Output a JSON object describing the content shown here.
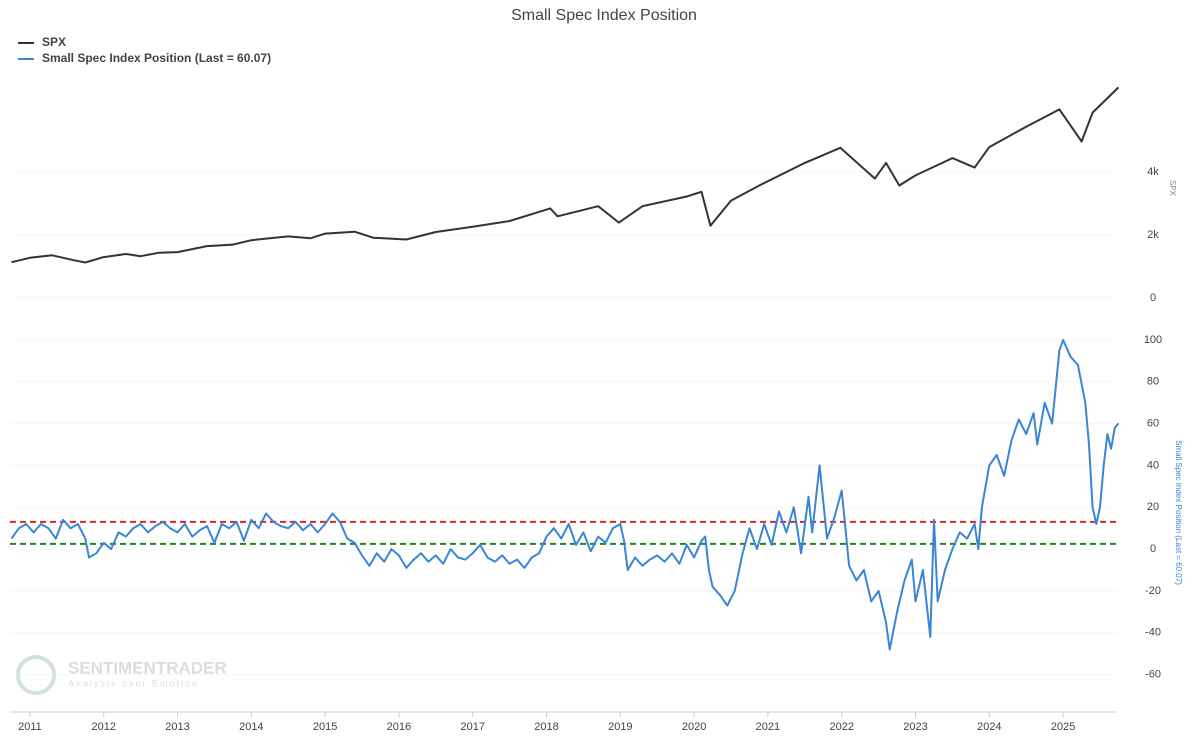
{
  "chart_data": [
    {
      "type": "line",
      "title": "Small Spec Index Position",
      "ylabel": "SPX",
      "x": [
        2010.75,
        2011.0,
        2011.3,
        2011.6,
        2011.75,
        2012.0,
        2012.3,
        2012.5,
        2012.75,
        2013.0,
        2013.4,
        2013.75,
        2014.0,
        2014.5,
        2014.8,
        2015.0,
        2015.4,
        2015.65,
        2016.1,
        2016.5,
        2017.0,
        2017.5,
        2018.05,
        2018.15,
        2018.7,
        2018.98,
        2019.3,
        2019.9,
        2020.1,
        2020.22,
        2020.5,
        2020.9,
        2021.5,
        2021.98,
        2022.45,
        2022.6,
        2022.78,
        2023.0,
        2023.5,
        2023.8,
        2024.0,
        2024.5,
        2024.95,
        2025.25,
        2025.4,
        2025.75
      ],
      "series": [
        {
          "name": "SPX",
          "color": "#333333",
          "values": [
            1140,
            1280,
            1360,
            1200,
            1130,
            1300,
            1400,
            1330,
            1440,
            1460,
            1650,
            1700,
            1840,
            1960,
            1900,
            2050,
            2110,
            1920,
            1860,
            2100,
            2270,
            2450,
            2850,
            2600,
            2920,
            2400,
            2920,
            3230,
            3380,
            2300,
            3100,
            3600,
            4300,
            4780,
            3800,
            4300,
            3580,
            3900,
            4450,
            4150,
            4800,
            5450,
            6000,
            4980,
            5900,
            6700
          ]
        }
      ],
      "xlim": [
        2010.73,
        2025.73
      ],
      "ylim": [
        0,
        7000
      ],
      "yticks": [
        0,
        {
          "value": 2000,
          "label": "2k"
        },
        {
          "value": 4000,
          "label": "4k"
        }
      ]
    },
    {
      "type": "line",
      "ylabel": "Small Spec Index Position (Last = 60.07)",
      "x": [
        2010.75,
        2010.85,
        2010.95,
        2011.05,
        2011.15,
        2011.25,
        2011.35,
        2011.45,
        2011.55,
        2011.65,
        2011.75,
        2011.8,
        2011.9,
        2012.0,
        2012.1,
        2012.2,
        2012.3,
        2012.4,
        2012.5,
        2012.6,
        2012.7,
        2012.8,
        2012.9,
        2013.0,
        2013.1,
        2013.2,
        2013.3,
        2013.4,
        2013.5,
        2013.6,
        2013.7,
        2013.8,
        2013.9,
        2014.0,
        2014.1,
        2014.2,
        2014.3,
        2014.4,
        2014.5,
        2014.6,
        2014.7,
        2014.8,
        2014.9,
        2015.0,
        2015.1,
        2015.2,
        2015.3,
        2015.4,
        2015.5,
        2015.6,
        2015.7,
        2015.8,
        2015.9,
        2016.0,
        2016.1,
        2016.2,
        2016.3,
        2016.4,
        2016.5,
        2016.6,
        2016.7,
        2016.8,
        2016.9,
        2017.0,
        2017.1,
        2017.2,
        2017.3,
        2017.4,
        2017.5,
        2017.6,
        2017.7,
        2017.8,
        2017.9,
        2018.0,
        2018.1,
        2018.2,
        2018.3,
        2018.4,
        2018.5,
        2018.6,
        2018.7,
        2018.8,
        2018.9,
        2019.0,
        2019.05,
        2019.1,
        2019.2,
        2019.3,
        2019.4,
        2019.5,
        2019.6,
        2019.7,
        2019.8,
        2019.9,
        2020.0,
        2020.1,
        2020.15,
        2020.2,
        2020.25,
        2020.35,
        2020.45,
        2020.55,
        2020.65,
        2020.75,
        2020.85,
        2020.95,
        2021.05,
        2021.15,
        2021.25,
        2021.35,
        2021.45,
        2021.55,
        2021.6,
        2021.7,
        2021.8,
        2021.9,
        2022.0,
        2022.05,
        2022.1,
        2022.2,
        2022.3,
        2022.4,
        2022.5,
        2022.6,
        2022.65,
        2022.75,
        2022.85,
        2022.95,
        2023.0,
        2023.1,
        2023.2,
        2023.25,
        2023.3,
        2023.4,
        2023.5,
        2023.6,
        2023.7,
        2023.8,
        2023.85,
        2023.9,
        2024.0,
        2024.1,
        2024.2,
        2024.3,
        2024.4,
        2024.5,
        2024.6,
        2024.65,
        2024.75,
        2024.85,
        2024.95,
        2025.0,
        2025.1,
        2025.2,
        2025.3,
        2025.35,
        2025.4,
        2025.45,
        2025.5,
        2025.55,
        2025.6,
        2025.65,
        2025.7,
        2025.75
      ],
      "series": [
        {
          "name": "Small Spec Index Position (Last = 60.07)",
          "color": "#3a86d4",
          "values": [
            5,
            10,
            12,
            8,
            12,
            10,
            5,
            14,
            10,
            12,
            5,
            -4,
            -2,
            3,
            0,
            8,
            6,
            10,
            12,
            8,
            11,
            13,
            10,
            8,
            12,
            6,
            9,
            11,
            3,
            12,
            10,
            13,
            4,
            14,
            10,
            17,
            13,
            11,
            10,
            13,
            9,
            12,
            8,
            12,
            17,
            13,
            5,
            3,
            -3,
            -8,
            -2,
            -6,
            0,
            -3,
            -9,
            -5,
            -2,
            -6,
            -3,
            -7,
            0,
            -4,
            -5,
            -2,
            2,
            -4,
            -6,
            -3,
            -7,
            -5,
            -9,
            -4,
            -2,
            6,
            10,
            5,
            12,
            2,
            8,
            -1,
            6,
            3,
            10,
            12,
            4,
            -10,
            -4,
            -8,
            -5,
            -3,
            -6,
            -2,
            -7,
            2,
            -4,
            4,
            6,
            -10,
            -18,
            -22,
            -27,
            -20,
            -3,
            10,
            0,
            12,
            2,
            18,
            8,
            20,
            -2,
            25,
            8,
            40,
            5,
            15,
            28,
            10,
            -8,
            -15,
            -10,
            -25,
            -20,
            -35,
            -48,
            -30,
            -15,
            -5,
            -25,
            -10,
            -42,
            14,
            -25,
            -10,
            0,
            8,
            5,
            12,
            0,
            20,
            40,
            45,
            35,
            52,
            62,
            55,
            65,
            50,
            70,
            60,
            95,
            100,
            92,
            88,
            70,
            50,
            20,
            12,
            20,
            40,
            55,
            48,
            58,
            60.07
          ]
        }
      ],
      "xlim": [
        2010.73,
        2025.73
      ],
      "ylim": [
        -75,
        110
      ],
      "yticks": [
        -60,
        -40,
        -20,
        0,
        20,
        40,
        60,
        80,
        100
      ],
      "xticks": [
        2011,
        2012,
        2013,
        2014,
        2015,
        2016,
        2017,
        2018,
        2019,
        2020,
        2021,
        2022,
        2023,
        2024,
        2025
      ],
      "reference_lines": [
        {
          "value": 13,
          "color": "#d62728"
        },
        {
          "value": 2.5,
          "color": "#1a8a1a"
        }
      ],
      "watermark": "SENTIMENTRADER",
      "watermark_tagline": "Analysis over Emotion"
    }
  ]
}
